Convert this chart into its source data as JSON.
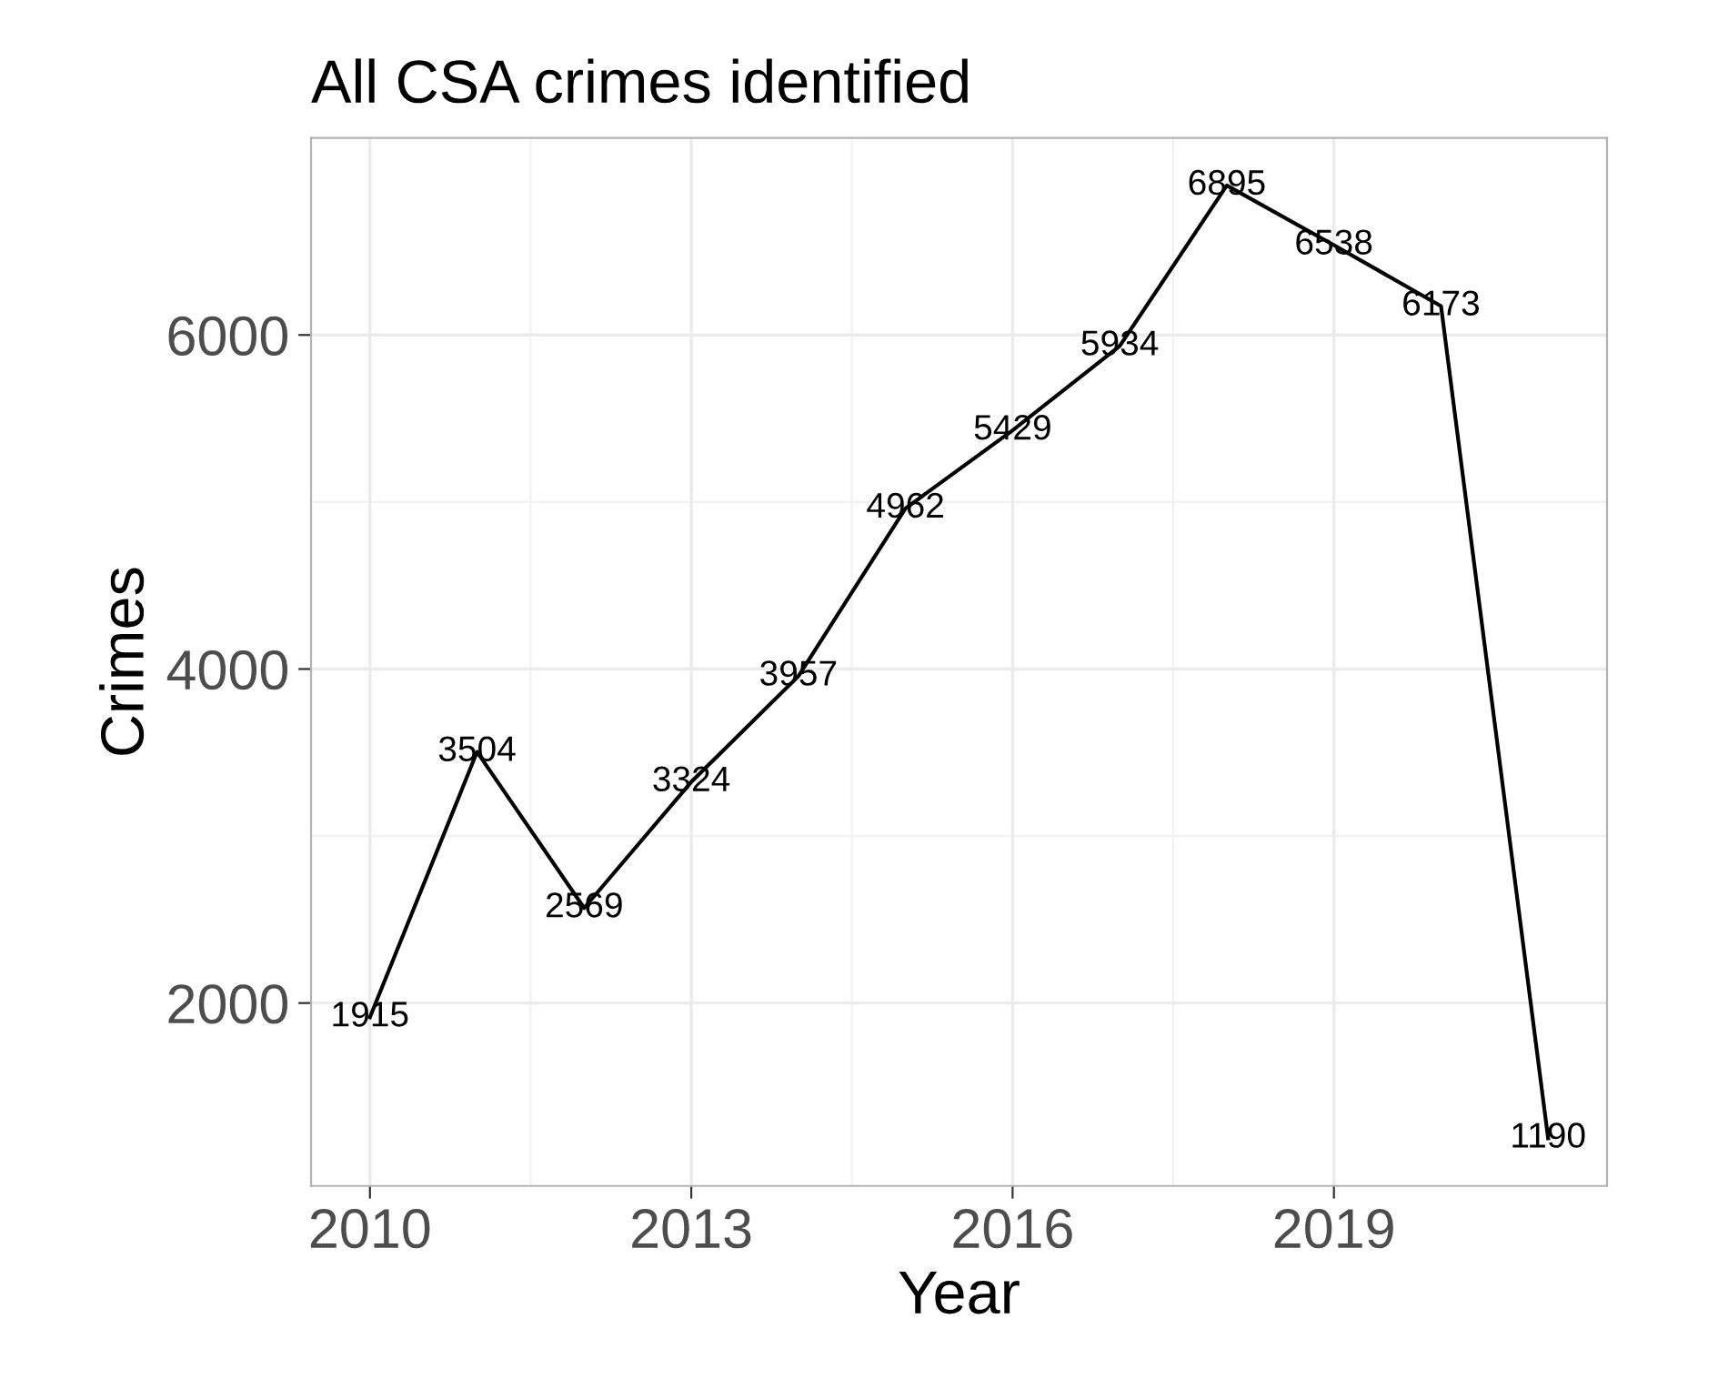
{
  "chart_data": {
    "type": "line",
    "title": "All CSA crimes identified",
    "xlabel": "Year",
    "ylabel": "Crimes",
    "x": [
      2010,
      2011,
      2012,
      2013,
      2014,
      2015,
      2016,
      2017,
      2018,
      2019,
      2020,
      2021
    ],
    "series": [
      {
        "color": "#000000",
        "values": [
          1915,
          3504,
          2569,
          3324,
          3957,
          4962,
          5429,
          5934,
          6895,
          6538,
          6173,
          1190
        ]
      }
    ],
    "xlim": [
      2009.45,
      2021.55
    ],
    "ylim": [
      905,
      7180
    ],
    "xticks": [
      2010,
      2013,
      2016,
      2019
    ],
    "yticks": [
      2000,
      4000,
      6000
    ],
    "grid": true,
    "data_labels": true,
    "line_style": "solid"
  }
}
